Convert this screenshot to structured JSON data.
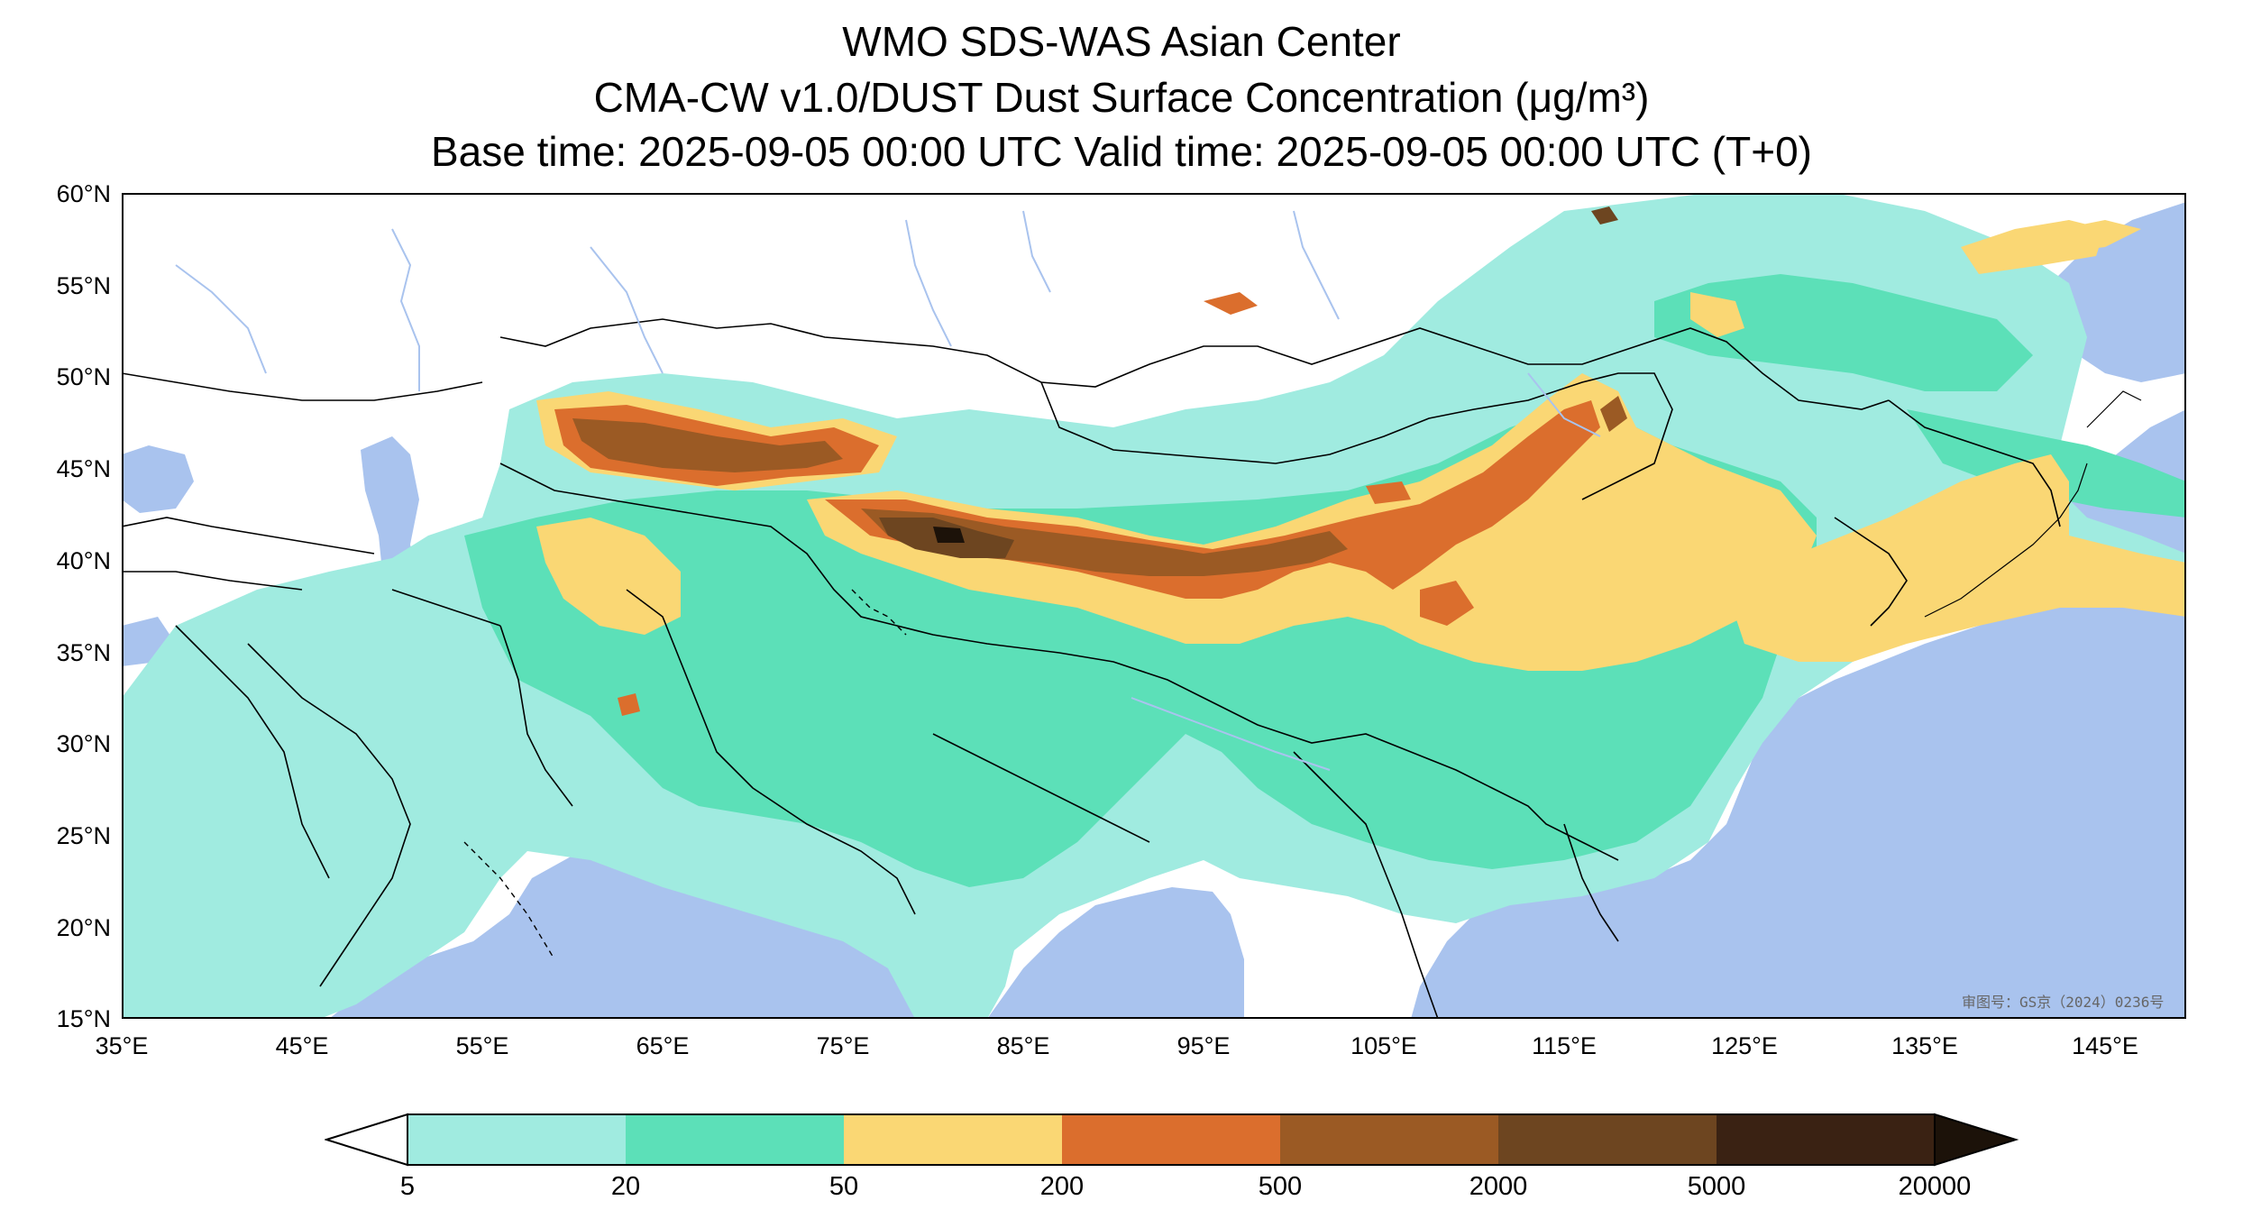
{
  "title": {
    "line1": "WMO SDS-WAS Asian Center",
    "line2": "CMA-CW v1.0/DUST Dust Surface Concentration (μg/m³)",
    "line3": "Base time: 2025-09-05 00:00 UTC Valid time: 2025-09-05 00:00 UTC (T+0)"
  },
  "map": {
    "lat_ticks": [
      "60°N",
      "55°N",
      "50°N",
      "45°N",
      "40°N",
      "35°N",
      "30°N",
      "25°N",
      "20°N",
      "15°N"
    ],
    "lon_ticks": [
      "35°E",
      "45°E",
      "55°E",
      "65°E",
      "75°E",
      "85°E",
      "95°E",
      "105°E",
      "115°E",
      "125°E",
      "135°E",
      "145°E"
    ],
    "lat_range": [
      15,
      60
    ],
    "lon_range": [
      35,
      150
    ],
    "approval_stamp": "审图号：GS京（2024）0236号",
    "colors": {
      "ocean": "#a9c3ee",
      "land": "#ffffff",
      "border": "#000000",
      "river": "#a9c3ee"
    }
  },
  "colorbar": {
    "levels": [
      "5",
      "20",
      "50",
      "200",
      "500",
      "2000",
      "5000",
      "20000"
    ],
    "colors": [
      "#a0ebe0",
      "#5ce0b8",
      "#fad774",
      "#db6e2d",
      "#9b5a24",
      "#6d4520",
      "#3a2213"
    ],
    "extend": "both",
    "under_color": "#ffffff",
    "over_color": "#1c1209"
  }
}
